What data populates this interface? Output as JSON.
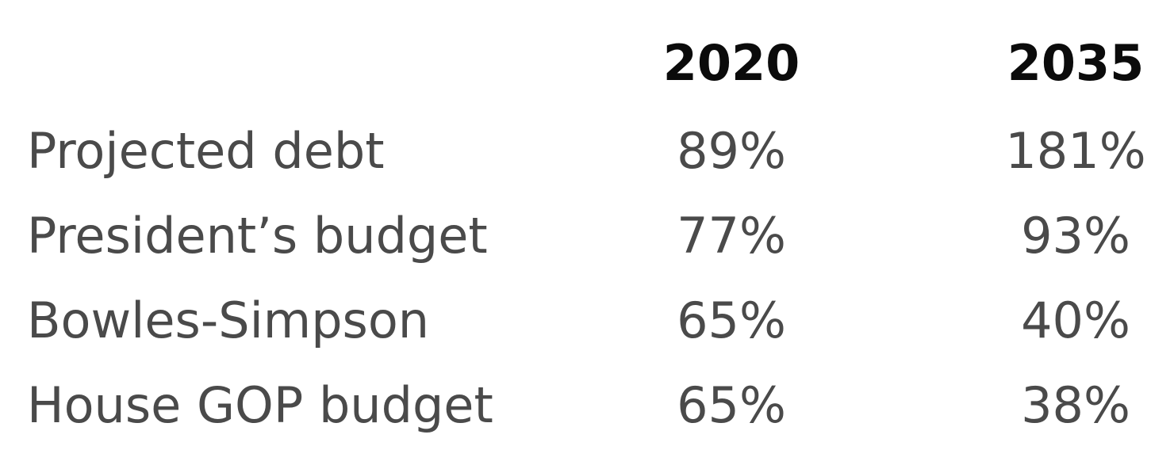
{
  "chart_data": {
    "type": "table",
    "columns": [
      "2020",
      "2035"
    ],
    "rows": [
      {
        "label": "Projected debt",
        "values": [
          "89%",
          "181%"
        ]
      },
      {
        "label": "President’s budget",
        "values": [
          "77%",
          "93%"
        ]
      },
      {
        "label": "Bowles-Simpson",
        "values": [
          "65%",
          "40%"
        ]
      },
      {
        "label": "House GOP budget",
        "values": [
          "65%",
          "38%"
        ]
      }
    ]
  }
}
